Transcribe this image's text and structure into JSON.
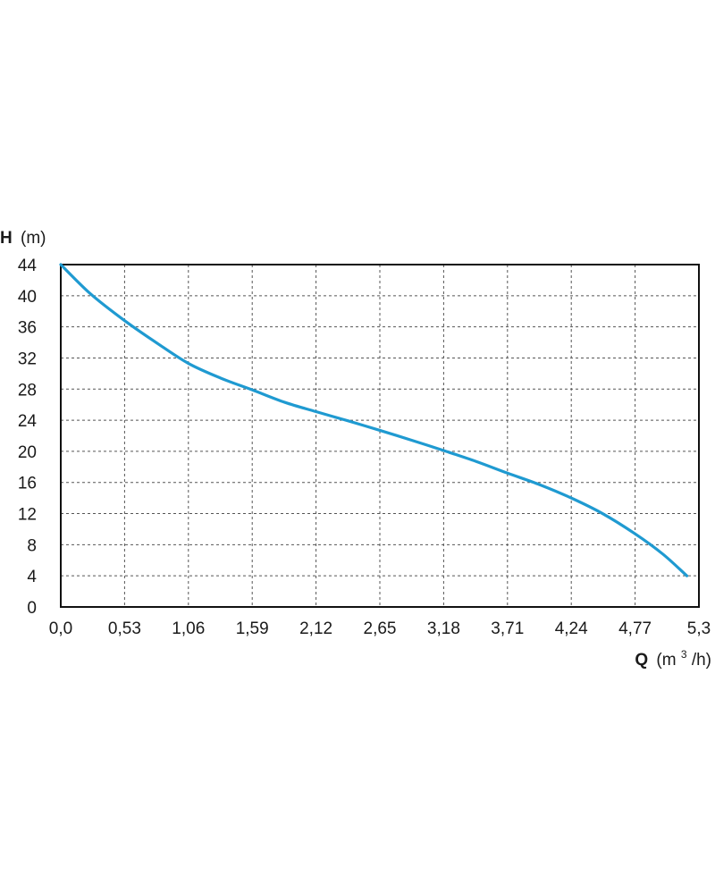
{
  "chart_data": {
    "type": "line",
    "title": "",
    "ylabel": {
      "symbol": "H",
      "unit": "(m)"
    },
    "xlabel": {
      "symbol": "Q",
      "unit_prefix": "(m",
      "unit_sup": "3",
      "unit_suffix": "/h)"
    },
    "xlim": [
      0,
      5.3
    ],
    "ylim": [
      0,
      44
    ],
    "x_ticks": [
      0,
      0.53,
      1.06,
      1.59,
      2.12,
      2.65,
      3.18,
      3.71,
      4.24,
      4.77,
      5.3
    ],
    "x_tick_labels": [
      "0,0",
      "0,53",
      "1,06",
      "1,59",
      "2,12",
      "2,65",
      "3,18",
      "3,71",
      "4,24",
      "4,77",
      "5,3"
    ],
    "y_ticks": [
      0,
      4,
      8,
      12,
      16,
      20,
      24,
      28,
      32,
      36,
      40,
      44
    ],
    "y_tick_labels": [
      "0",
      "4",
      "8",
      "12",
      "16",
      "20",
      "24",
      "28",
      "32",
      "36",
      "40",
      "44"
    ],
    "grid": true,
    "series": [
      {
        "color": "#1f9ad1",
        "x": [
          0,
          0.25,
          0.53,
          0.8,
          1.06,
          1.33,
          1.59,
          1.86,
          2.12,
          2.39,
          2.65,
          2.92,
          3.18,
          3.45,
          3.71,
          3.98,
          4.24,
          4.5,
          4.77,
          5.0,
          5.2
        ],
        "y": [
          44,
          40.2,
          36.8,
          33.9,
          31.3,
          29.4,
          27.9,
          26.3,
          25.1,
          23.9,
          22.7,
          21.4,
          20.1,
          18.7,
          17.2,
          15.7,
          14.0,
          12.0,
          9.4,
          6.8,
          4.0
        ]
      }
    ]
  }
}
